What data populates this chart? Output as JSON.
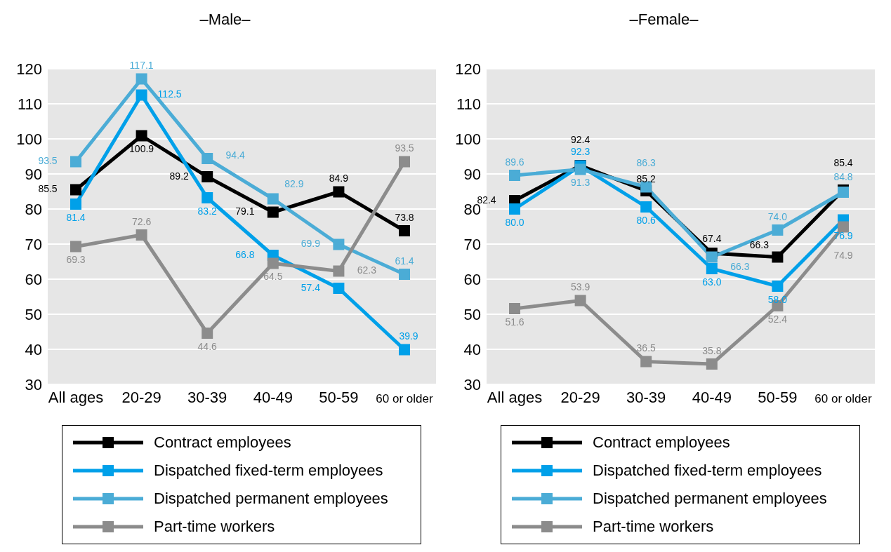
{
  "chart_data": [
    {
      "type": "line",
      "title": "–Male–",
      "categories": [
        "All ages",
        "20-29",
        "30-39",
        "40-49",
        "50-59",
        "60 or older"
      ],
      "ylim": [
        30,
        120
      ],
      "yticks": [
        30,
        40,
        50,
        60,
        70,
        80,
        90,
        100,
        110,
        120
      ],
      "grid": "y",
      "legend": "bottom",
      "marker": "square",
      "series": [
        {
          "name": "Contract employees",
          "color": "#000000",
          "values": [
            85.5,
            100.9,
            89.2,
            79.1,
            84.9,
            73.8
          ],
          "value_labels": [
            "85.5",
            "100.9",
            "89.2",
            "79.1",
            "84.9",
            "73.8"
          ]
        },
        {
          "name": "Dispatched fixed-term employees",
          "color": "#00a0e9",
          "values": [
            81.4,
            112.5,
            83.2,
            66.8,
            57.4,
            39.9
          ],
          "value_labels": [
            "81.4",
            "112.5",
            "83.2",
            "66.8",
            "57.4",
            "39.9"
          ]
        },
        {
          "name": "Dispatched permanent employees",
          "color": "#4bacd6",
          "values": [
            93.5,
            117.1,
            94.4,
            82.9,
            69.9,
            61.4
          ],
          "value_labels": [
            "93.5",
            "117.1",
            "94.4",
            "82.9",
            "69.9",
            "61.4"
          ]
        },
        {
          "name": "Part-time workers",
          "color": "#8c8c8c",
          "values": [
            69.3,
            72.6,
            44.6,
            64.5,
            62.3,
            93.5
          ],
          "value_labels": [
            "69.3",
            "72.6",
            "44.6",
            "64.5",
            "62.3",
            "93.5"
          ]
        }
      ]
    },
    {
      "type": "line",
      "title": "–Female–",
      "categories": [
        "All ages",
        "20-29",
        "30-39",
        "40-49",
        "50-59",
        "60 or older"
      ],
      "ylim": [
        30,
        120
      ],
      "yticks": [
        30,
        40,
        50,
        60,
        70,
        80,
        90,
        100,
        110,
        120
      ],
      "grid": "y",
      "legend": "bottom",
      "marker": "square",
      "series": [
        {
          "name": "Contract employees",
          "color": "#000000",
          "values": [
            82.4,
            92.4,
            85.2,
            67.4,
            66.3,
            85.4
          ],
          "value_labels": [
            "82.4",
            "92.4",
            "85.2",
            "67.4",
            "66.3",
            "85.4"
          ]
        },
        {
          "name": "Dispatched fixed-term employees",
          "color": "#00a0e9",
          "values": [
            80.0,
            92.3,
            80.6,
            63.0,
            58.0,
            76.9
          ],
          "value_labels": [
            "80.0",
            "92.3",
            "80.6",
            "63.0",
            "58.0",
            "76.9"
          ]
        },
        {
          "name": "Dispatched permanent employees",
          "color": "#4bacd6",
          "values": [
            89.6,
            91.3,
            86.3,
            66.3,
            74.0,
            84.8
          ],
          "value_labels": [
            "89.6",
            "91.3",
            "86.3",
            "66.3",
            "74.0",
            "84.8"
          ]
        },
        {
          "name": "Part-time workers",
          "color": "#8c8c8c",
          "values": [
            51.6,
            53.9,
            36.5,
            35.8,
            52.4,
            74.9
          ],
          "value_labels": [
            "51.6",
            "53.9",
            "36.5",
            "35.8",
            "52.4",
            "74.9"
          ]
        }
      ]
    }
  ]
}
